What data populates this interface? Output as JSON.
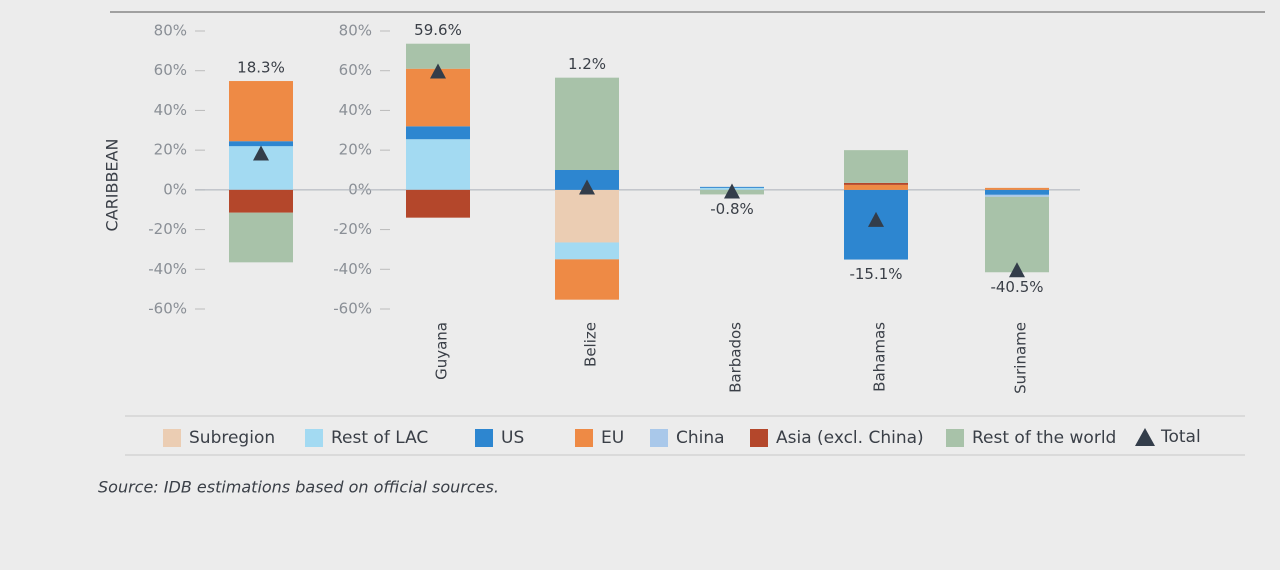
{
  "chart_data": {
    "type": "stacked_bar",
    "ylabel": "CARIBBEAN",
    "categories": [
      null,
      "Guyana",
      "Belize",
      "Barbados",
      "Bahamas",
      "Suriname"
    ],
    "ylim": [
      -60,
      80
    ],
    "yticks": [
      {
        "value": 80,
        "label": "80%"
      },
      {
        "value": 60,
        "label": "60%"
      },
      {
        "value": 40,
        "label": "40%"
      },
      {
        "value": 20,
        "label": "20%"
      },
      {
        "value": 0,
        "label": "0%"
      },
      {
        "value": -20,
        "label": "-20%"
      },
      {
        "value": -40,
        "label": "-40%"
      },
      {
        "value": -60,
        "label": "-60%"
      }
    ],
    "series": [
      {
        "name": "Subregion",
        "color": "#ebcdb3",
        "values": [
          0,
          0,
          -26.5,
          0,
          0,
          0
        ]
      },
      {
        "name": "Rest of LAC",
        "color": "#a3daf2",
        "values": [
          22,
          25.5,
          -8.5,
          1,
          0,
          0
        ]
      },
      {
        "name": "US",
        "color": "#2d86d0",
        "values": [
          2.5,
          6.5,
          10,
          0.5,
          -35.1,
          -2.5
        ]
      },
      {
        "name": "EU",
        "color": "#ee8a45",
        "values": [
          30.3,
          29,
          -20.3,
          0,
          2.5,
          1
        ]
      },
      {
        "name": "China",
        "color": "#a9c8ea",
        "values": [
          0,
          0,
          0,
          0,
          0,
          -1
        ]
      },
      {
        "name": "Asia (excl. China)",
        "color": "#b4472b",
        "values": [
          -11.5,
          -14,
          0,
          0,
          1,
          0
        ]
      },
      {
        "name": "Rest of the world",
        "color": "#a8c2a9",
        "values": [
          -25,
          12.6,
          46.5,
          -2.3,
          16.5,
          -38
        ]
      }
    ],
    "total": {
      "name": "Total",
      "color": "#333d4a",
      "values": [
        18.3,
        59.6,
        1.2,
        -0.8,
        -15.1,
        -40.5
      ],
      "value_labels": [
        "18.3%",
        "59.6%",
        "1.2%",
        "-0.8%",
        "-15.1%",
        "-40.5%"
      ]
    },
    "source": "Source: IDB estimations based on official sources."
  }
}
